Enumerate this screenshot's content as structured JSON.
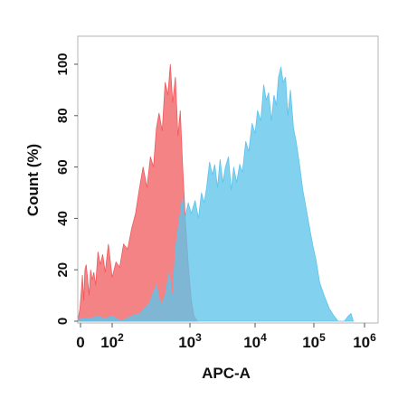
{
  "chart_data": {
    "type": "area",
    "title": "",
    "xlabel": "APC-A",
    "ylabel": "Count  (%)",
    "x_scale": "biexponential",
    "xlim": [
      -5,
      1000000
    ],
    "ylim": [
      0,
      108
    ],
    "grid": false,
    "legend": "none",
    "x_ticks": [
      {
        "value": 0,
        "base": "0",
        "exp": ""
      },
      {
        "value": 100,
        "base": "10",
        "exp": "2"
      },
      {
        "value": 1000,
        "base": "10",
        "exp": "3"
      },
      {
        "value": 10000,
        "base": "10",
        "exp": "4"
      },
      {
        "value": 100000,
        "base": "10",
        "exp": "5"
      },
      {
        "value": 1000000,
        "base": "10",
        "exp": "6"
      }
    ],
    "y_ticks": [
      {
        "value": 0,
        "label": "0"
      },
      {
        "value": 20,
        "label": "20"
      },
      {
        "value": 40,
        "label": "40"
      },
      {
        "value": 60,
        "label": "60"
      },
      {
        "value": 80,
        "label": "80"
      },
      {
        "value": 100,
        "label": "100"
      }
    ],
    "series": [
      {
        "color": "#f05a5e",
        "opacity": 0.75,
        "points": [
          [
            -5,
            0
          ],
          [
            -1,
            5
          ],
          [
            3,
            12
          ],
          [
            6,
            18
          ],
          [
            10,
            8
          ],
          [
            14,
            20
          ],
          [
            18,
            22
          ],
          [
            22,
            17
          ],
          [
            27,
            10
          ],
          [
            32,
            20
          ],
          [
            37,
            16
          ],
          [
            42,
            19
          ],
          [
            48,
            14
          ],
          [
            55,
            27
          ],
          [
            63,
            22
          ],
          [
            70,
            26
          ],
          [
            78,
            19
          ],
          [
            88,
            30
          ],
          [
            100,
            17
          ],
          [
            112,
            23
          ],
          [
            125,
            21
          ],
          [
            140,
            30
          ],
          [
            158,
            28
          ],
          [
            178,
            36
          ],
          [
            200,
            42
          ],
          [
            225,
            52
          ],
          [
            250,
            60
          ],
          [
            280,
            52
          ],
          [
            310,
            64
          ],
          [
            340,
            60
          ],
          [
            370,
            75
          ],
          [
            400,
            81
          ],
          [
            440,
            74
          ],
          [
            480,
            93
          ],
          [
            520,
            88
          ],
          [
            560,
            100
          ],
          [
            600,
            85
          ],
          [
            650,
            95
          ],
          [
            700,
            72
          ],
          [
            750,
            82
          ],
          [
            800,
            62
          ],
          [
            870,
            40
          ],
          [
            950,
            22
          ],
          [
            1050,
            8
          ],
          [
            1150,
            2
          ],
          [
            1300,
            0
          ]
        ]
      },
      {
        "color": "#5ec4ea",
        "opacity": 0.78,
        "points": [
          [
            -5,
            0
          ],
          [
            2,
            1
          ],
          [
            10,
            1
          ],
          [
            30,
            1
          ],
          [
            55,
            2
          ],
          [
            75,
            1
          ],
          [
            100,
            2
          ],
          [
            130,
            0
          ],
          [
            180,
            2
          ],
          [
            230,
            3
          ],
          [
            300,
            7
          ],
          [
            370,
            14
          ],
          [
            420,
            6
          ],
          [
            480,
            10
          ],
          [
            540,
            19
          ],
          [
            600,
            8
          ],
          [
            650,
            28
          ],
          [
            720,
            38
          ],
          [
            800,
            48
          ],
          [
            860,
            40
          ],
          [
            950,
            46
          ],
          [
            1050,
            42
          ],
          [
            1200,
            47
          ],
          [
            1350,
            40
          ],
          [
            1500,
            50
          ],
          [
            1650,
            46
          ],
          [
            1800,
            52
          ],
          [
            2000,
            62
          ],
          [
            2200,
            57
          ],
          [
            2400,
            61
          ],
          [
            2650,
            52
          ],
          [
            2900,
            63
          ],
          [
            3200,
            54
          ],
          [
            3500,
            60
          ],
          [
            3900,
            64
          ],
          [
            4300,
            51
          ],
          [
            4700,
            60
          ],
          [
            5200,
            54
          ],
          [
            5800,
            61
          ],
          [
            6400,
            58
          ],
          [
            7200,
            70
          ],
          [
            8000,
            66
          ],
          [
            9000,
            77
          ],
          [
            10000,
            73
          ],
          [
            11000,
            82
          ],
          [
            12500,
            78
          ],
          [
            14000,
            92
          ],
          [
            15500,
            86
          ],
          [
            17000,
            89
          ],
          [
            19000,
            78
          ],
          [
            21000,
            88
          ],
          [
            23000,
            84
          ],
          [
            25000,
            95
          ],
          [
            27500,
            99
          ],
          [
            30000,
            93
          ],
          [
            33000,
            95
          ],
          [
            36000,
            80
          ],
          [
            40000,
            90
          ],
          [
            45000,
            75
          ],
          [
            50000,
            70
          ],
          [
            57000,
            61
          ],
          [
            65000,
            51
          ],
          [
            75000,
            43
          ],
          [
            85000,
            36
          ],
          [
            97000,
            29
          ],
          [
            110000,
            24
          ],
          [
            130000,
            15
          ],
          [
            160000,
            10
          ],
          [
            200000,
            5
          ],
          [
            250000,
            2
          ],
          [
            300000,
            0
          ],
          [
            400000,
            0
          ],
          [
            480000,
            2
          ],
          [
            540000,
            3
          ],
          [
            600000,
            0
          ]
        ]
      }
    ]
  }
}
